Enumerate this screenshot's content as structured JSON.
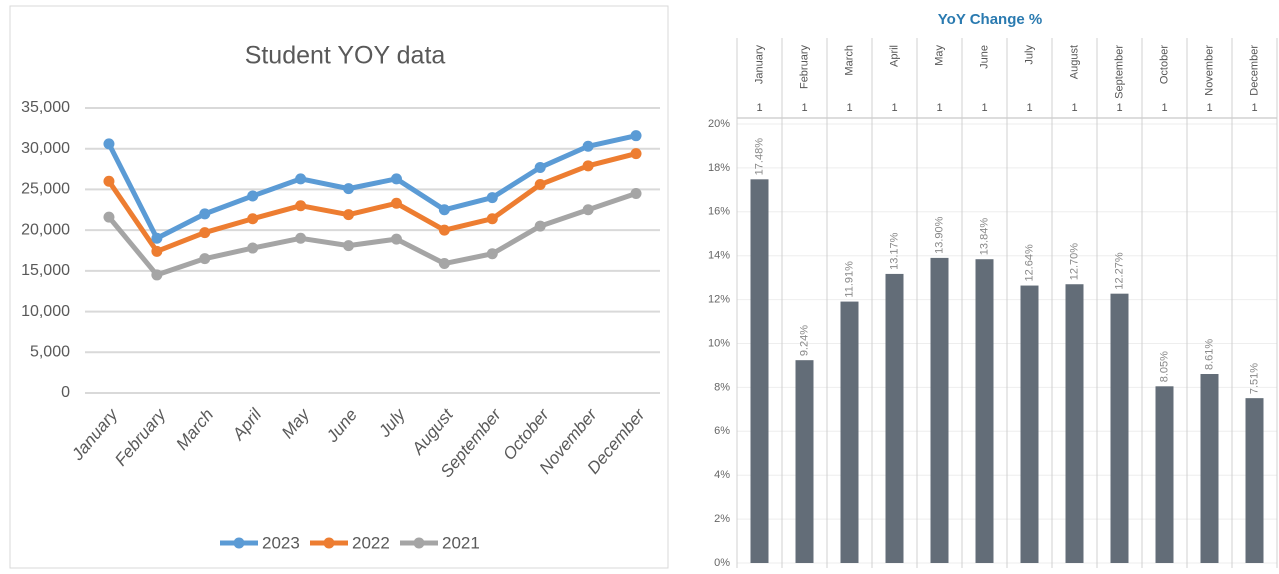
{
  "chart_data": [
    {
      "type": "line",
      "title": "Student YOY data",
      "categories": [
        "January",
        "February",
        "March",
        "April",
        "May",
        "June",
        "July",
        "August",
        "September",
        "October",
        "November",
        "December"
      ],
      "series": [
        {
          "name": "2023",
          "color": "#5b9bd5",
          "values": [
            30600,
            19000,
            22000,
            24200,
            26300,
            25100,
            26300,
            22500,
            24000,
            27700,
            30300,
            31600
          ]
        },
        {
          "name": "2022",
          "color": "#ed7d31",
          "values": [
            26000,
            17400,
            19700,
            21400,
            23000,
            21900,
            23300,
            20000,
            21400,
            25600,
            27900,
            29400
          ]
        },
        {
          "name": "2021",
          "color": "#a5a5a5",
          "values": [
            21600,
            14500,
            16500,
            17800,
            19000,
            18100,
            18900,
            15900,
            17100,
            20500,
            22500,
            24500
          ]
        }
      ],
      "ylim": [
        0,
        35000
      ],
      "yticks": [
        0,
        {
          "value": 5000,
          "label": "5,000"
        },
        {
          "value": 10000,
          "label": "10,000"
        },
        {
          "value": 15000,
          "label": "15,000"
        },
        {
          "value": 20000,
          "label": "20,000"
        },
        {
          "value": 25000,
          "label": "25,000"
        },
        {
          "value": 30000,
          "label": "30,000"
        },
        {
          "value": 35000,
          "label": "35,000"
        }
      ],
      "grid": true,
      "legend": "bottom"
    },
    {
      "type": "bar",
      "title": "YoY Change %",
      "categories": [
        "January",
        "February",
        "March",
        "April",
        "May",
        "June",
        "July",
        "August",
        "September",
        "October",
        "November",
        "December"
      ],
      "counts": [
        1,
        1,
        1,
        1,
        1,
        1,
        1,
        1,
        1,
        1,
        1,
        1
      ],
      "values": [
        17.48,
        9.24,
        11.91,
        13.17,
        13.9,
        13.84,
        12.64,
        12.7,
        12.27,
        8.05,
        8.61,
        7.51
      ],
      "value_labels": [
        "17.48%",
        "9.24%",
        "11.91%",
        "13.17%",
        "13.90%",
        "13.84%",
        "12.64%",
        "12.70%",
        "12.27%",
        "8.05%",
        "8.61%",
        "7.51%"
      ],
      "color": "#636d78",
      "ylim": [
        0,
        20
      ],
      "yticks": [
        {
          "value": 0,
          "label": "0%"
        },
        {
          "value": 2,
          "label": "2%"
        },
        {
          "value": 4,
          "label": "4%"
        },
        {
          "value": 6,
          "label": "6%"
        },
        {
          "value": 8,
          "label": "8%"
        },
        {
          "value": 10,
          "label": "10%"
        },
        {
          "value": 12,
          "label": "12%"
        },
        {
          "value": 14,
          "label": "14%"
        },
        {
          "value": 16,
          "label": "16%"
        },
        {
          "value": 18,
          "label": "18%"
        },
        {
          "value": 20,
          "label": "20%"
        }
      ],
      "grid": true
    }
  ]
}
